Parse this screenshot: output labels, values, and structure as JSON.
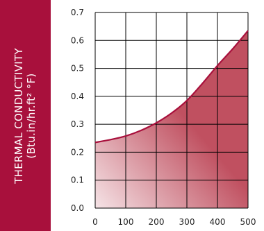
{
  "colors": {
    "label_bar": "#a8103c",
    "curve": "#a8103c",
    "fill_light": "#f5e3e6",
    "fill_dark": "#c05060",
    "grid": "#000000"
  },
  "y_axis_title": {
    "line1": "THERMAL CONDUCTIVITY",
    "line2": "(Btu.in/hr.ft² °F)"
  },
  "chart_data": {
    "type": "area",
    "title": "",
    "xlabel": "",
    "ylabel": "THERMAL CONDUCTIVITY (Btu.in/hr.ft² °F)",
    "xlim": [
      0,
      500
    ],
    "ylim": [
      0,
      0.7
    ],
    "xticks": [
      "0",
      "100",
      "200",
      "300",
      "400",
      "500"
    ],
    "yticks": [
      "0.0",
      "0.1",
      "0.2",
      "0.3",
      "0.4",
      "0.5",
      "0.6",
      "0.7"
    ],
    "grid": true,
    "x": [
      0,
      50,
      100,
      150,
      200,
      250,
      300,
      350,
      400,
      450,
      500
    ],
    "y": [
      0.235,
      0.245,
      0.258,
      0.278,
      0.305,
      0.34,
      0.385,
      0.445,
      0.51,
      0.57,
      0.635
    ]
  }
}
